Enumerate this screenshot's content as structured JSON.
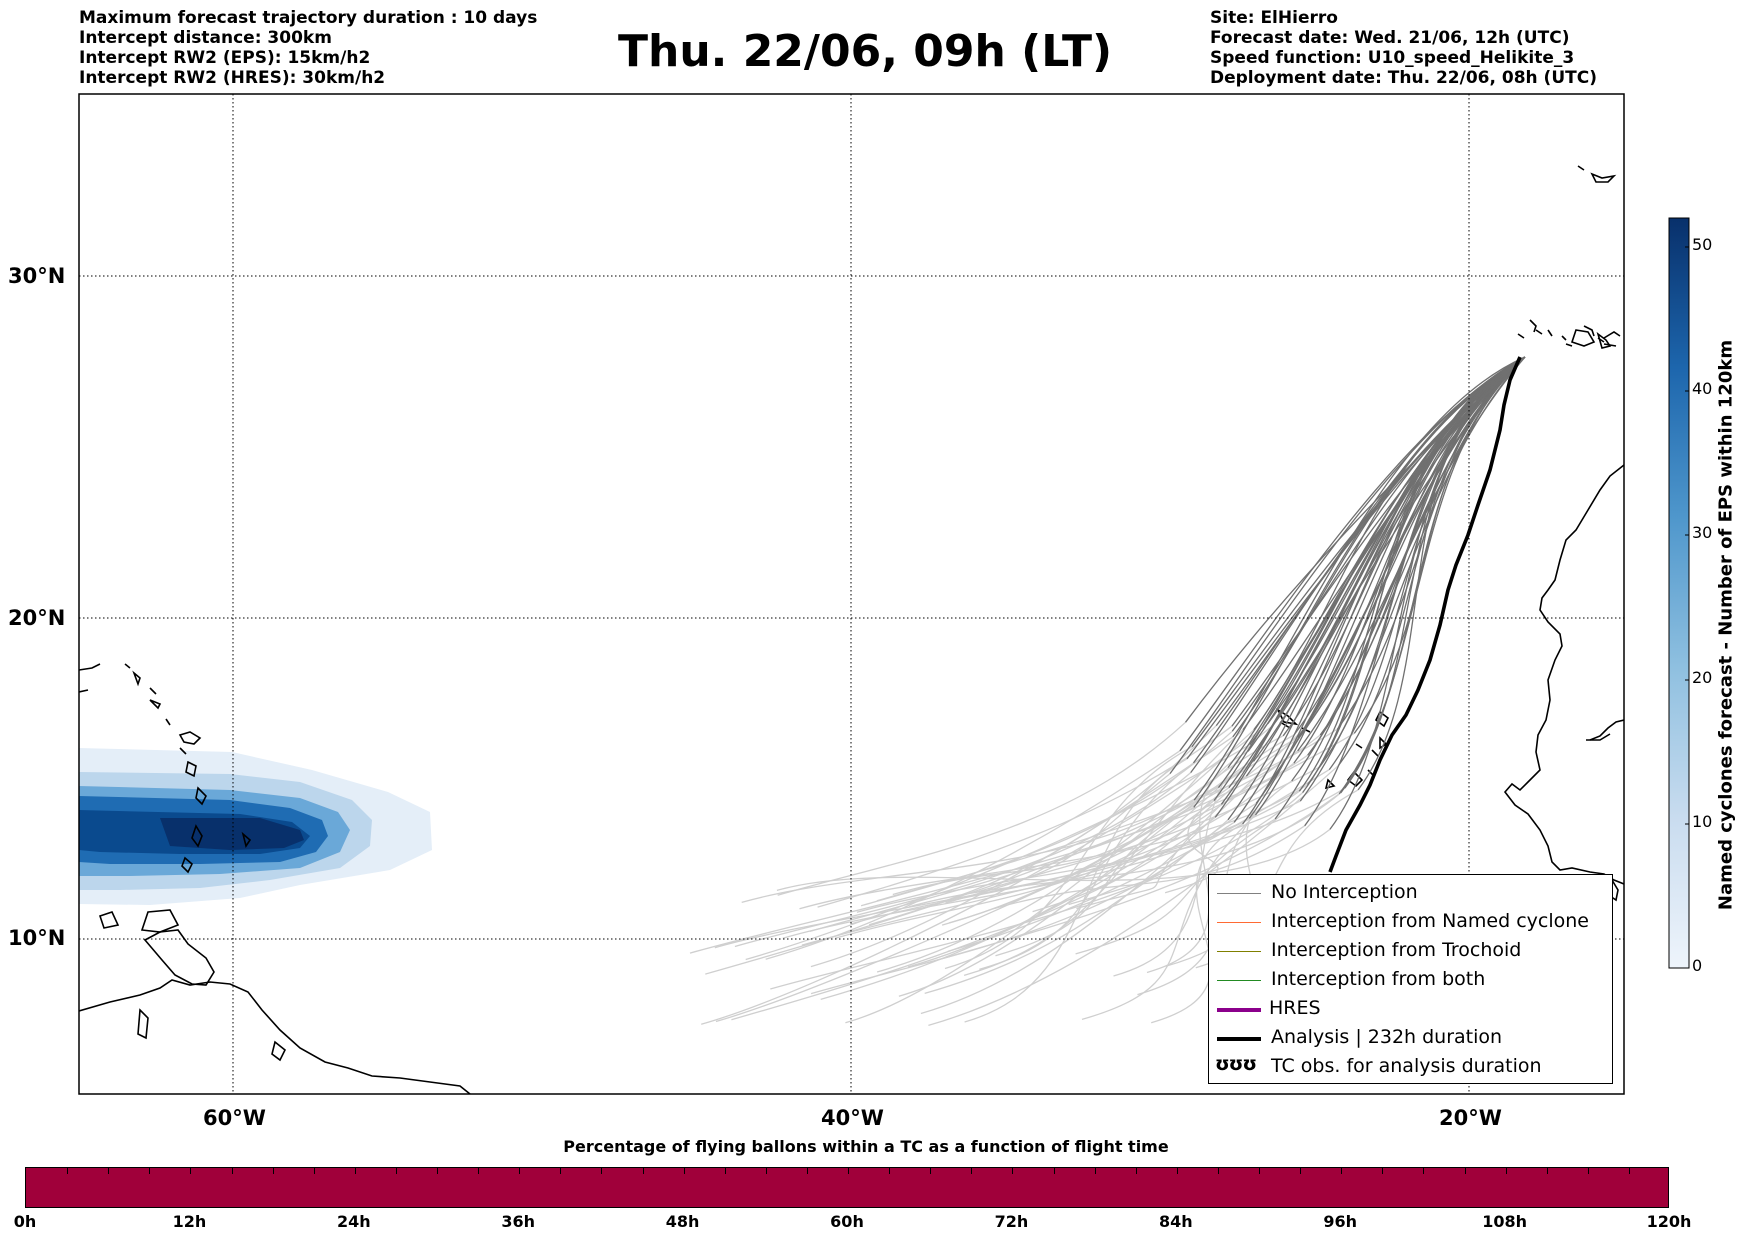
{
  "header": {
    "left_lines": [
      "Maximum forecast trajectory duration : 10 days",
      "Intercept distance: 300km",
      "Intercept RW2 (EPS):  15km/h2",
      "Intercept RW2 (HRES): 30km/h2"
    ],
    "title": "Thu. 22/06, 09h (LT)",
    "right_lines": [
      "Site: ElHierro",
      "Forecast date: Wed. 21/06, 12h (UTC)",
      "Speed function: U10_speed_Helikite_3",
      "Deployment date: Thu. 22/06, 08h (UTC)"
    ]
  },
  "map": {
    "lat_labels": [
      "30°N",
      "20°N",
      "10°N"
    ],
    "lon_labels": [
      "60°W",
      "40°W",
      "20°W"
    ],
    "grid_style": "dotted"
  },
  "legend": {
    "items": [
      {
        "label": "No Interception",
        "color": "#808080"
      },
      {
        "label": "Interception from Named cyclone",
        "color": "#ff6a33"
      },
      {
        "label": "Interception from Trochoid",
        "color": "#808000"
      },
      {
        "label": "Interception from both",
        "color": "#228b22"
      },
      {
        "label": "HRES",
        "color": "#8b008b"
      },
      {
        "label": "Analysis | 232h duration",
        "color": "#000000"
      },
      {
        "label": "TC obs. for analysis duration",
        "color": "#000000",
        "glyph": "ʊʊʊ"
      }
    ]
  },
  "colorbar": {
    "label": "Named cyclones forecast - Number of EPS within 120km",
    "ticks": [
      "0",
      "10",
      "20",
      "30",
      "40",
      "50"
    ],
    "colors": [
      "#e6eef8",
      "#b7d3ea",
      "#6aaed6",
      "#2f7fc1",
      "#0a56a0",
      "#08306b"
    ]
  },
  "flight_time": {
    "caption": "Percentage of flying ballons within a TC as a function of flight time",
    "labels": [
      "0h",
      "12h",
      "24h",
      "36h",
      "48h",
      "60h",
      "72h",
      "84h",
      "96h",
      "108h",
      "120h"
    ],
    "bar_color": "#a0003a"
  }
}
